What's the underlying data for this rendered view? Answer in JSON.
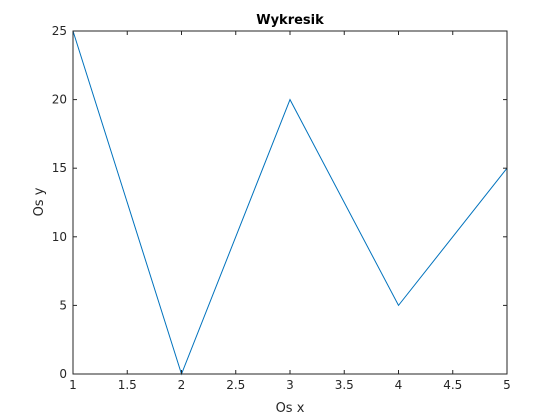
{
  "chart_data": {
    "type": "line",
    "title": "Wykresik",
    "xlabel": "Os x",
    "ylabel": "Os y",
    "x": [
      1,
      2,
      3,
      4,
      5
    ],
    "series": [
      {
        "values": [
          25,
          0,
          20,
          5,
          15
        ],
        "color": "#0072bd"
      }
    ],
    "xlim": [
      1,
      5
    ],
    "ylim": [
      0,
      25
    ],
    "xticks": [
      1,
      1.5,
      2,
      2.5,
      3,
      3.5,
      4,
      4.5,
      5
    ],
    "xtick_labels": [
      "1",
      "1.5",
      "2",
      "2.5",
      "3",
      "3.5",
      "4",
      "4.5",
      "5"
    ],
    "yticks": [
      0,
      5,
      10,
      15,
      20,
      25
    ],
    "ytick_labels": [
      "0",
      "5",
      "10",
      "15",
      "20",
      "25"
    ],
    "grid": false,
    "box": true
  }
}
